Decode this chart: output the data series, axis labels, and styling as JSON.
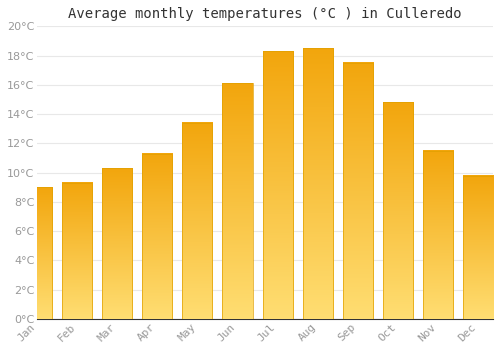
{
  "title": "Average monthly temperatures (°C ) in Culleredo",
  "months": [
    "Jan",
    "Feb",
    "Mar",
    "Apr",
    "May",
    "Jun",
    "Jul",
    "Aug",
    "Sep",
    "Oct",
    "Nov",
    "Dec"
  ],
  "values": [
    9.0,
    9.3,
    10.3,
    11.3,
    13.4,
    16.1,
    18.3,
    18.5,
    17.5,
    14.8,
    11.5,
    9.8
  ],
  "bar_color_top": "#F5A800",
  "bar_color_bottom": "#FFD966",
  "background_color": "#FFFFFF",
  "plot_bg_color": "#FFFFFF",
  "grid_color": "#E8E8E8",
  "ylim": [
    0,
    20
  ],
  "ytick_step": 2,
  "title_fontsize": 10,
  "tick_fontsize": 8,
  "tick_color": "#999999",
  "bar_width": 0.75
}
